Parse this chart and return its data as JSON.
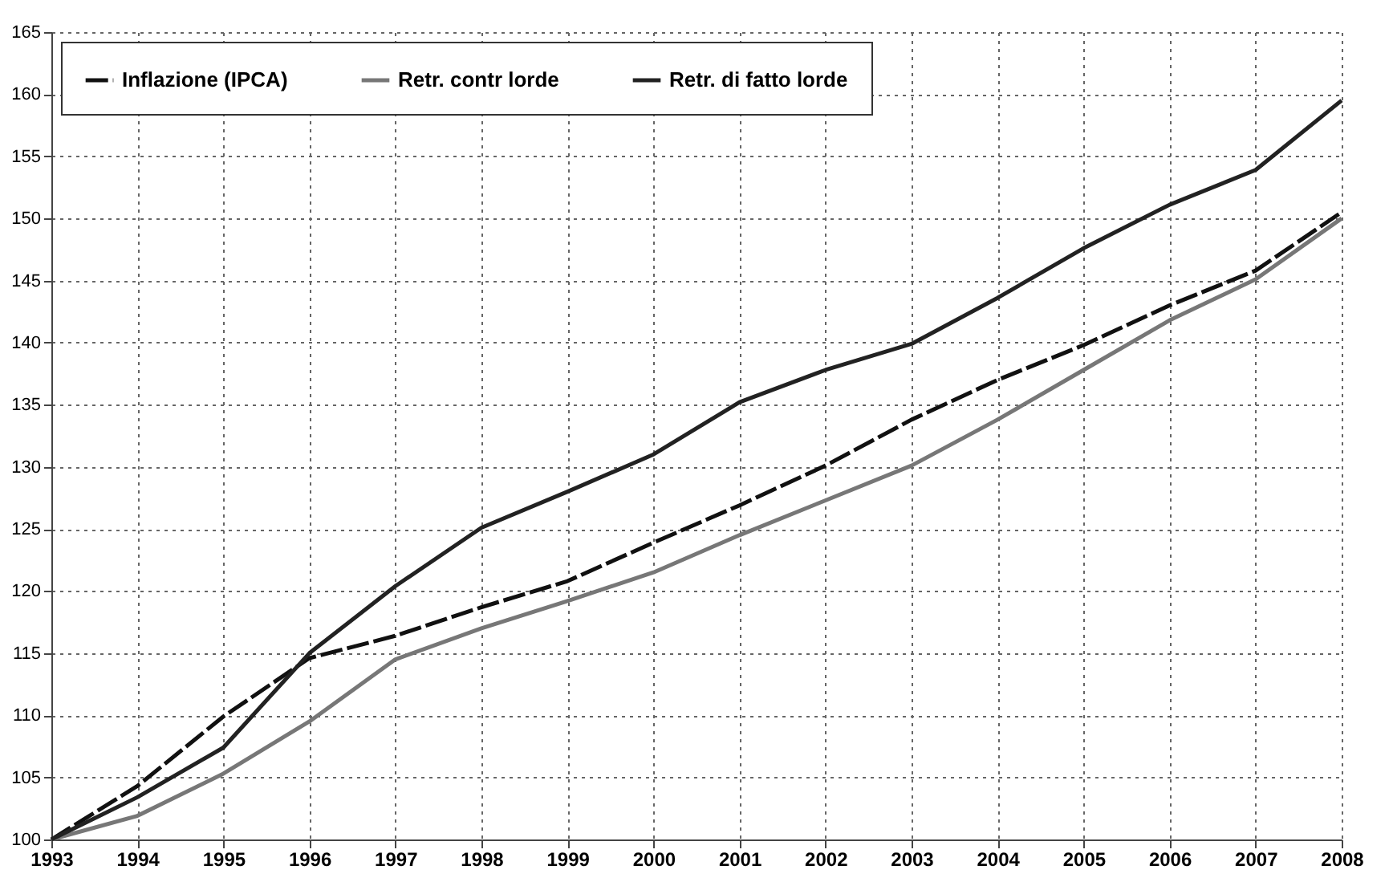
{
  "chart_data": {
    "type": "line",
    "x": [
      1993,
      1994,
      1995,
      1996,
      1997,
      1998,
      1999,
      2000,
      2001,
      2002,
      2003,
      2004,
      2005,
      2006,
      2007,
      2008
    ],
    "series": [
      {
        "name": "Inflazione (IPCA)",
        "color": "#111111",
        "line_style": "dashed",
        "values": [
          100,
          104.3,
          109.9,
          114.6,
          116.4,
          118.7,
          120.8,
          123.9,
          126.9,
          130.1,
          133.8,
          137.0,
          139.8,
          143.0,
          145.8,
          150.5
        ]
      },
      {
        "name": "Retr. contr lorde",
        "color": "#777777",
        "values": [
          100,
          101.9,
          105.3,
          109.5,
          114.5,
          117.0,
          119.2,
          121.5,
          124.5,
          127.3,
          130.1,
          133.8,
          137.8,
          141.8,
          145.1,
          150.0
        ]
      },
      {
        "name": "Retr. di fatto lorde",
        "color": "#222222",
        "values": [
          100,
          103.4,
          107.4,
          115.0,
          120.4,
          125.1,
          128.0,
          131.0,
          135.2,
          137.8,
          139.9,
          143.6,
          147.6,
          151.1,
          153.9,
          159.5
        ]
      }
    ],
    "xlim": [
      1993,
      2008
    ],
    "xticks": [
      1993,
      1994,
      1995,
      1996,
      1997,
      1998,
      1999,
      2000,
      2001,
      2002,
      2003,
      2004,
      2005,
      2006,
      2007,
      2008
    ],
    "ylim": [
      100,
      165
    ],
    "yticks": [
      100,
      105,
      110,
      115,
      120,
      125,
      130,
      135,
      140,
      145,
      150,
      155,
      160,
      165
    ],
    "grid": true,
    "legend": "top left"
  }
}
